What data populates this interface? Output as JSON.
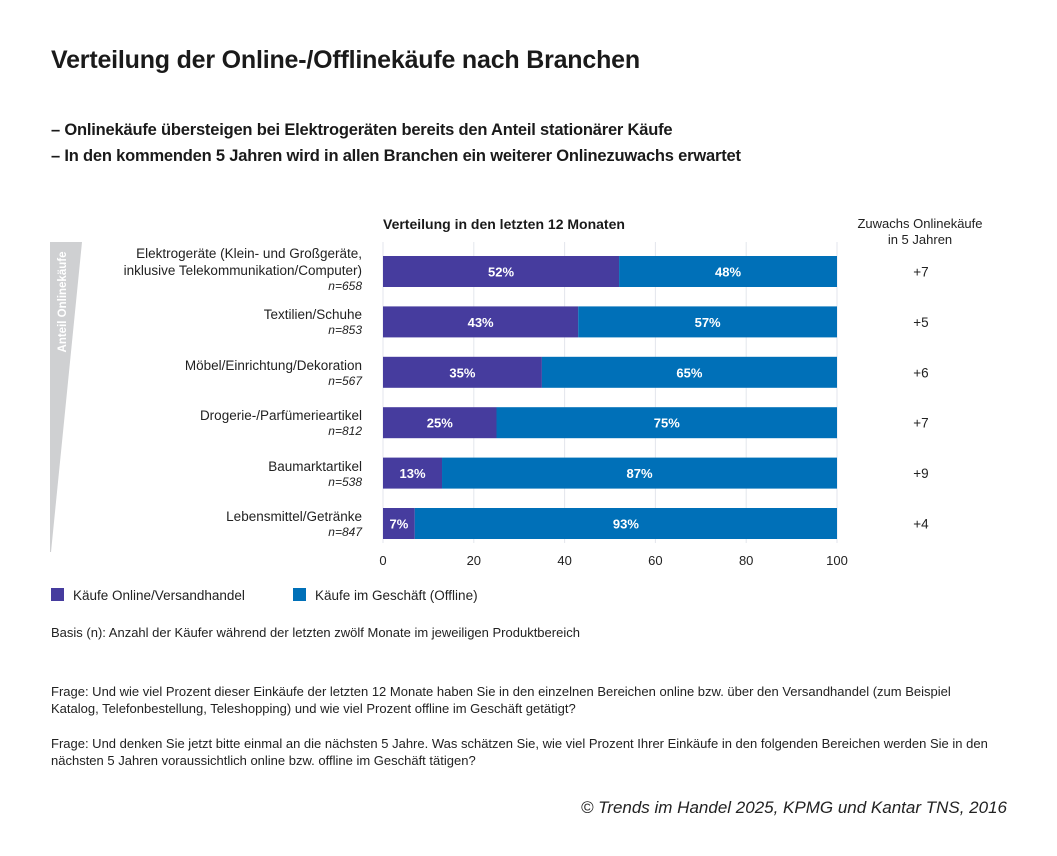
{
  "title": "Verteilung der Online-/Offlinekäufe nach Branchen",
  "bullets": [
    "– Onlinekäufe übersteigen bei Elektrogeräten bereits den Anteil stationärer Käufe",
    "– In den kommenden 5 Jahren wird in allen Branchen ein weiterer Onlinezuwachs erwartet"
  ],
  "side_label": "Anteil Onlinekäufe",
  "growth_header": [
    "Zuwachs Onlinekäufe",
    "in 5 Jahren"
  ],
  "basis_note": "Basis (n): Anzahl der Käufer während der letzten zwölf Monate im jeweiligen Produktbereich",
  "questions": [
    "Frage: Und wie viel Prozent dieser Einkäufe der letzten 12 Monate haben Sie in den einzelnen Bereichen online bzw. über den Versandhandel (zum Beispiel Katalog, Telefonbestellung, Teleshopping) und wie viel Prozent offline im Geschäft getätigt?",
    "Frage: Und denken Sie jetzt bitte einmal an die nächsten 5 Jahre. Was schätzen Sie, wie viel Prozent Ihrer Einkäufe in den folgenden Bereichen werden Sie in den nächsten 5 Jahren voraussichtlich online bzw. offline im Geschäft tätigen?"
  ],
  "copyright": "© Trends im Handel 2025, KPMG und Kantar TNS, 2016",
  "colors": {
    "online": "#463c9e",
    "offline": "#0070b8",
    "grid": "#e3e6ec",
    "wedge": "#cfd0d2"
  },
  "chart_data": {
    "type": "bar",
    "orientation": "horizontal",
    "stacked": true,
    "title": "Verteilung in den letzten 12 Monaten",
    "xlabel": "",
    "ylabel": "",
    "xlim": [
      0,
      100
    ],
    "xticks": [
      0,
      20,
      40,
      60,
      80,
      100
    ],
    "grid": true,
    "legend_position": "bottom-left",
    "categories": [
      {
        "label_lines": [
          "Elektrogeräte (Klein- und Großgeräte,",
          "inklusive Telekommunikation/Computer)"
        ],
        "n": "n=658"
      },
      {
        "label_lines": [
          "Textilien/Schuhe"
        ],
        "n": "n=853"
      },
      {
        "label_lines": [
          "Möbel/Einrichtung/Dekoration"
        ],
        "n": "n=567"
      },
      {
        "label_lines": [
          "Drogerie-/Parfümerieartikel"
        ],
        "n": "n=812"
      },
      {
        "label_lines": [
          "Baumarktartikel"
        ],
        "n": "n=538"
      },
      {
        "label_lines": [
          "Lebensmittel/Getränke"
        ],
        "n": "n=847"
      }
    ],
    "series": [
      {
        "name": "Käufe Online/Versandhandel",
        "color": "#463c9e",
        "values": [
          52,
          43,
          35,
          25,
          13,
          7
        ]
      },
      {
        "name": "Käufe im Geschäft (Offline)",
        "color": "#0070b8",
        "values": [
          48,
          57,
          65,
          75,
          87,
          93
        ]
      }
    ],
    "value_suffix": "%",
    "growth_5_years": [
      "+7",
      "+5",
      "+6",
      "+7",
      "+9",
      "+4"
    ]
  }
}
